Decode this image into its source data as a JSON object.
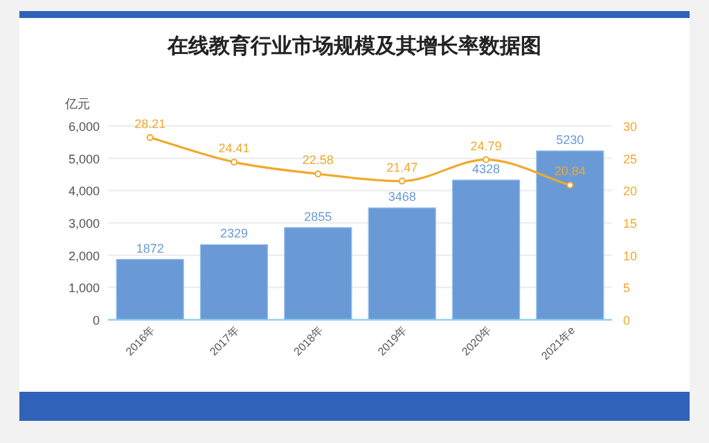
{
  "chart_data": {
    "type": "bar",
    "title": "在线教育行业市场规模及其增长率数据图",
    "ylabel": "亿元",
    "categories": [
      "2016年",
      "2017年",
      "2018年",
      "2019年",
      "2020年",
      "2021年e"
    ],
    "series": [
      {
        "color": "#6a9ad6",
        "values": [
          1872,
          2329,
          2855,
          3468,
          4328,
          5230
        ]
      },
      {
        "type": "line",
        "axis": "y2",
        "color": "#f0a92c",
        "values": [
          28.21,
          24.41,
          22.58,
          21.47,
          24.79,
          20.84
        ]
      }
    ],
    "ylim": [
      0,
      6000
    ],
    "yticks": [
      0,
      {
        "value": 1000,
        "label": "1,000"
      },
      {
        "value": 2000,
        "label": "2,000"
      },
      {
        "value": 3000,
        "label": "3,000"
      },
      {
        "value": 4000,
        "label": "4,000"
      },
      {
        "value": 5000,
        "label": "5,000"
      },
      {
        "value": 6000,
        "label": "6,000"
      }
    ],
    "y2lim": [
      0,
      30
    ],
    "y2ticks": [
      0,
      5,
      10,
      15,
      20,
      25,
      30
    ],
    "grid": "y",
    "marker": "circle",
    "data_labels": true
  }
}
